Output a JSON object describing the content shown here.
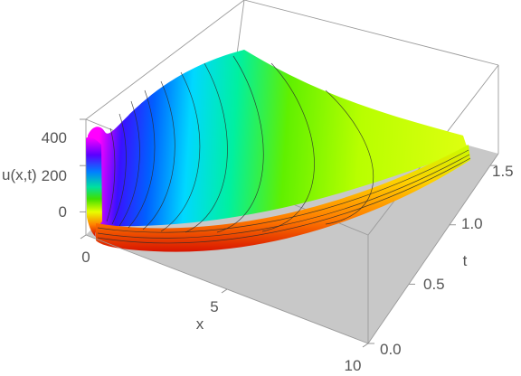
{
  "chart_data": {
    "type": "surface3d",
    "title": "",
    "xlabel": "x",
    "ylabel": "t",
    "zlabel": "u(x,t)",
    "xlim": [
      0,
      10
    ],
    "ylim": [
      0,
      1.6
    ],
    "zlim": [
      -100,
      400
    ],
    "x_ticks": [
      0,
      5,
      10
    ],
    "y_ticks": [
      0.0,
      0.5,
      1.0,
      1.5
    ],
    "z_ticks": [
      0,
      200,
      400
    ],
    "x_tick_labels": [
      "0",
      "5",
      "10"
    ],
    "y_tick_labels": [
      "0.0",
      "0.5",
      "1.0",
      "1.5"
    ],
    "z_tick_labels": [
      "0",
      "200",
      "400"
    ],
    "colormap": "rainbow (red low → violet high)",
    "surface_samples": {
      "x": [
        0,
        0.5,
        1,
        2,
        3,
        4,
        5,
        6,
        7,
        8,
        9,
        10
      ],
      "t": [
        0.0,
        0.4,
        0.8,
        1.2,
        1.6
      ],
      "u": [
        [
          -80,
          -95,
          -100,
          -100,
          -100,
          -100,
          -100,
          -100,
          -100,
          -100,
          -100,
          -100
        ],
        [
          -20,
          -70,
          -80,
          -85,
          -85,
          -85,
          -85,
          -85,
          -85,
          -85,
          -85,
          -85
        ],
        [
          100,
          60,
          40,
          20,
          10,
          0,
          -10,
          -15,
          -20,
          -20,
          -20,
          -20
        ],
        [
          250,
          200,
          160,
          120,
          90,
          70,
          55,
          45,
          40,
          35,
          35,
          35
        ],
        [
          380,
          330,
          270,
          210,
          160,
          130,
          110,
          95,
          85,
          80,
          75,
          75
        ]
      ]
    },
    "grid": false,
    "box": true
  },
  "colors": {
    "floor": "#c8c8c8",
    "box": "#9a9a9a",
    "tick_text": "#555555"
  }
}
